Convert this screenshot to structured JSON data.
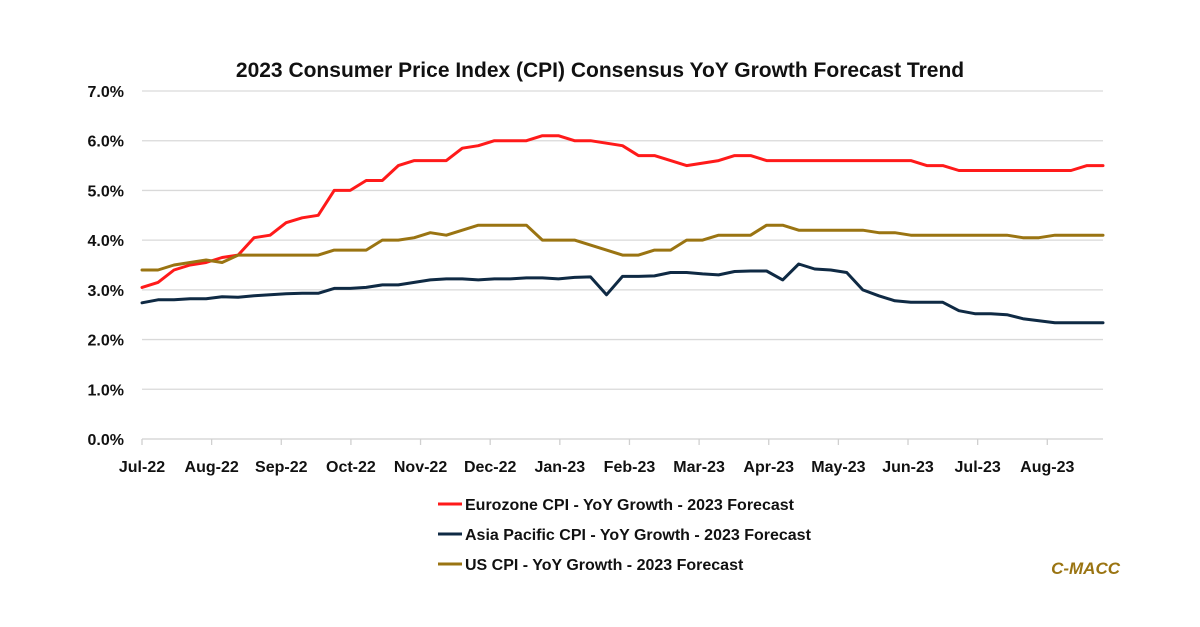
{
  "chart_data": {
    "type": "line",
    "title": "2023 Consumer Price Index (CPI) Consensus YoY Growth Forecast Trend",
    "xlabel": "",
    "ylabel": "",
    "ylim": [
      0,
      7
    ],
    "y_ticks": [
      "0.0%",
      "1.0%",
      "2.0%",
      "3.0%",
      "4.0%",
      "5.0%",
      "6.0%",
      "7.0%"
    ],
    "y_tick_values": [
      0,
      1,
      2,
      3,
      4,
      5,
      6,
      7
    ],
    "x_ticks": [
      "Jul-22",
      "Aug-22",
      "Sep-22",
      "Oct-22",
      "Nov-22",
      "Dec-22",
      "Jan-23",
      "Feb-23",
      "Mar-23",
      "Apr-23",
      "May-23",
      "Jun-23",
      "Jul-23",
      "Aug-23"
    ],
    "x_range_months": [
      0,
      13.8
    ],
    "x_frequency": "weekly",
    "grid": true,
    "legend_position": "bottom",
    "series": [
      {
        "name": "Eurozone CPI - YoY Growth - 2023 Forecast",
        "color": "#ff1a1a",
        "values": [
          3.05,
          3.15,
          3.4,
          3.5,
          3.55,
          3.65,
          3.7,
          4.05,
          4.1,
          4.35,
          4.45,
          4.5,
          5.0,
          5.0,
          5.2,
          5.2,
          5.5,
          5.6,
          5.6,
          5.6,
          5.85,
          5.9,
          6.0,
          6.0,
          6.0,
          6.1,
          6.1,
          6.0,
          6.0,
          5.95,
          5.9,
          5.7,
          5.7,
          5.6,
          5.5,
          5.55,
          5.6,
          5.7,
          5.7,
          5.6,
          5.6,
          5.6,
          5.6,
          5.6,
          5.6,
          5.6,
          5.6,
          5.6,
          5.6,
          5.5,
          5.5,
          5.4,
          5.4,
          5.4,
          5.4,
          5.4,
          5.4,
          5.4,
          5.4,
          5.5,
          5.5
        ]
      },
      {
        "name": "Asia Pacific CPI - YoY Growth - 2023 Forecast",
        "color": "#0f2a44",
        "values": [
          2.74,
          2.8,
          2.8,
          2.82,
          2.82,
          2.86,
          2.85,
          2.88,
          2.9,
          2.92,
          2.93,
          2.93,
          3.03,
          3.03,
          3.05,
          3.1,
          3.1,
          3.15,
          3.2,
          3.22,
          3.22,
          3.2,
          3.22,
          3.22,
          3.24,
          3.24,
          3.22,
          3.25,
          3.26,
          2.9,
          3.27,
          3.27,
          3.28,
          3.35,
          3.35,
          3.32,
          3.3,
          3.37,
          3.38,
          3.38,
          3.2,
          3.52,
          3.42,
          3.4,
          3.35,
          3.0,
          2.88,
          2.78,
          2.75,
          2.75,
          2.75,
          2.58,
          2.52,
          2.52,
          2.5,
          2.42,
          2.38,
          2.34,
          2.34,
          2.34,
          2.34
        ]
      },
      {
        "name": "US CPI - YoY Growth - 2023 Forecast",
        "color": "#9a7412",
        "values": [
          3.4,
          3.4,
          3.5,
          3.55,
          3.6,
          3.55,
          3.7,
          3.7,
          3.7,
          3.7,
          3.7,
          3.7,
          3.8,
          3.8,
          3.8,
          4.0,
          4.0,
          4.05,
          4.15,
          4.1,
          4.2,
          4.3,
          4.3,
          4.3,
          4.3,
          4.0,
          4.0,
          4.0,
          3.9,
          3.8,
          3.7,
          3.7,
          3.8,
          3.8,
          4.0,
          4.0,
          4.1,
          4.1,
          4.1,
          4.3,
          4.3,
          4.2,
          4.2,
          4.2,
          4.2,
          4.2,
          4.15,
          4.15,
          4.1,
          4.1,
          4.1,
          4.1,
          4.1,
          4.1,
          4.1,
          4.05,
          4.05,
          4.1,
          4.1,
          4.1,
          4.1
        ]
      }
    ]
  },
  "brand": {
    "label": "C-MACC",
    "color": "#9a7412"
  }
}
